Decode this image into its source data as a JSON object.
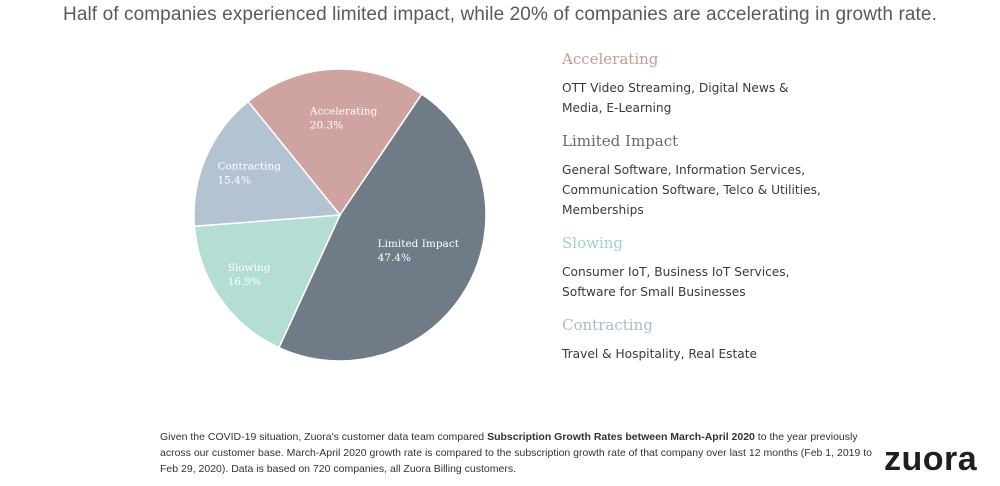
{
  "headline": "Half of companies experienced limited impact, while 20% of companies are accelerating in growth rate.",
  "chart_data": {
    "type": "pie",
    "title": "",
    "slices": [
      {
        "name": "Accelerating",
        "value": 20.3,
        "label": "20.3%",
        "color": "#cfa3a0"
      },
      {
        "name": "Limited Impact",
        "value": 47.4,
        "label": "47.4%",
        "color": "#6f7b87"
      },
      {
        "name": "Slowing",
        "value": 16.9,
        "label": "16.9%",
        "color": "#b4ddd4"
      },
      {
        "name": "Contracting",
        "value": 15.4,
        "label": "15.4%",
        "color": "#b3c3d1"
      }
    ]
  },
  "legend": [
    {
      "title": "Accelerating",
      "title_color": "#c99995",
      "lines": [
        "OTT Video Streaming, Digital News &",
        "Media, E-Learning"
      ]
    },
    {
      "title": "Limited Impact",
      "title_color": "#5f6c78",
      "lines": [
        "General Software, Information Services,",
        "Communication Software, Telco & Utilities,",
        "Memberships"
      ]
    },
    {
      "title": "Slowing",
      "title_color": "#9fd2c6",
      "lines": [
        "Consumer IoT, Business IoT Services,",
        "Software for Small Businesses"
      ]
    },
    {
      "title": "Contracting",
      "title_color": "#a9bccb",
      "lines": [
        "Travel & Hospitality, Real Estate"
      ]
    }
  ],
  "footnote": {
    "part1": "Given the COVID-19 situation, Zuora's customer data team compared ",
    "bold": "Subscription Growth Rates between March-April 2020",
    "part2": " to the year previously across our customer base. March-April 2020 growth rate is compared to the subscription growth rate of that company over last 12 months (Feb 1, 2019 to Feb 29, 2020).  Data is based on 720 companies, all Zuora Billing customers."
  },
  "logo_text": "zuora"
}
